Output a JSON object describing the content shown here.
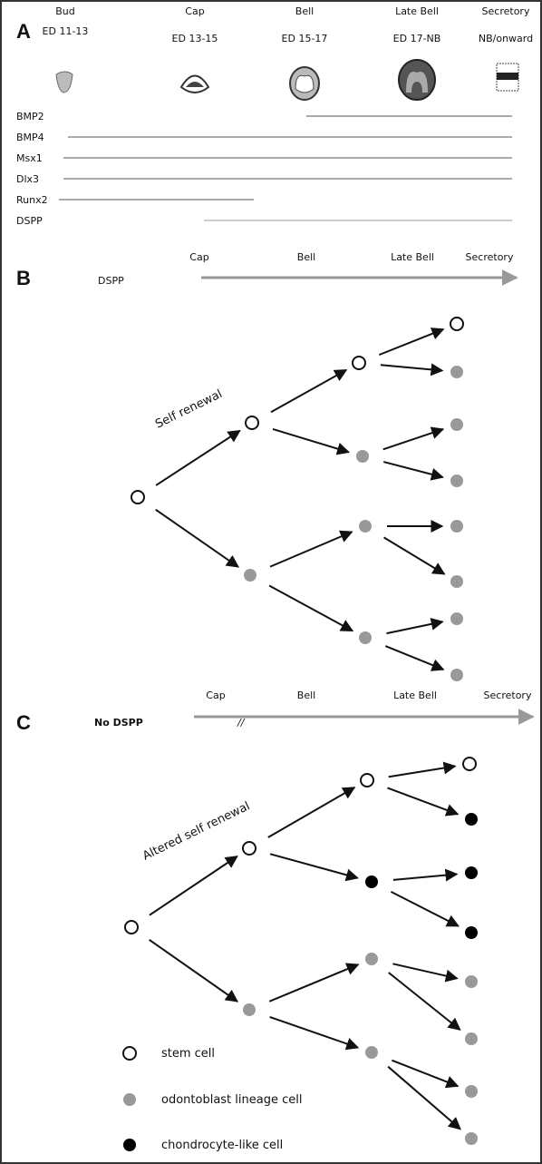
{
  "panel_a": {
    "label": "A",
    "stages": [
      {
        "name": "Bud",
        "days": "ED 11-13"
      },
      {
        "name": "Cap",
        "days": "ED 13-15"
      },
      {
        "name": "Bell",
        "days": "ED 15-17"
      },
      {
        "name": "Late Bell",
        "days": "ED 17-NB"
      },
      {
        "name": "Secretory",
        "days": "NB/onward"
      }
    ],
    "genes": [
      "BMP2",
      "BMP4",
      "Msx1",
      "Dlx3",
      "Runx2",
      "DSPP"
    ]
  },
  "panel_b": {
    "label": "B",
    "condition": "DSPP",
    "stages": [
      "Cap",
      "Bell",
      "Late Bell",
      "Secretory"
    ],
    "annotation": "Self renewal"
  },
  "panel_c": {
    "label": "C",
    "condition": "No DSPP",
    "stages": [
      "Cap",
      "Bell",
      "Late Bell",
      "Secretory"
    ],
    "annotation": "Altered self renewal"
  },
  "legend": [
    "stem cell",
    "odontoblast lineage cell",
    "chondrocyte-like cell"
  ]
}
